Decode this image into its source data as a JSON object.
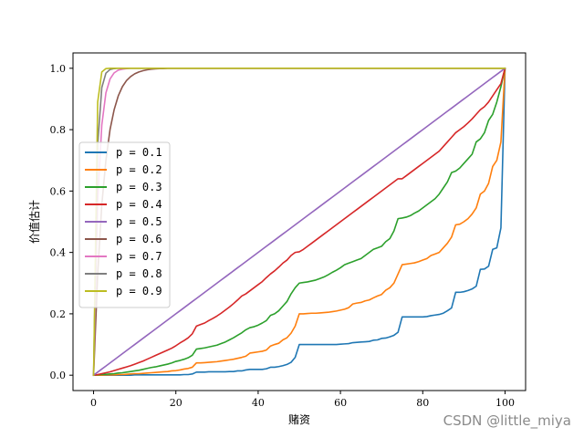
{
  "chart_data": {
    "type": "line",
    "xlabel": "赌资",
    "ylabel": "价值估计",
    "xlim": [
      -5,
      105
    ],
    "ylim": [
      -0.05,
      1.05
    ],
    "xticks": [
      0,
      20,
      40,
      60,
      80,
      100
    ],
    "xtick_labels": [
      "0",
      "20",
      "40",
      "60",
      "80",
      "100"
    ],
    "yticks": [
      0.0,
      0.2,
      0.4,
      0.6,
      0.8,
      1.0
    ],
    "ytick_labels": [
      "0.0",
      "0.2",
      "0.4",
      "0.6",
      "0.8",
      "1.0"
    ],
    "grid": false,
    "legend_position": "center-left",
    "x": [
      0,
      1,
      2,
      3,
      4,
      5,
      6,
      7,
      8,
      9,
      10,
      11,
      12,
      13,
      14,
      15,
      16,
      17,
      18,
      19,
      20,
      21,
      22,
      23,
      24,
      25,
      26,
      27,
      28,
      29,
      30,
      31,
      32,
      33,
      34,
      35,
      36,
      37,
      38,
      39,
      40,
      41,
      42,
      43,
      44,
      45,
      46,
      47,
      48,
      49,
      50,
      51,
      52,
      53,
      54,
      55,
      56,
      57,
      58,
      59,
      60,
      61,
      62,
      63,
      64,
      65,
      66,
      67,
      68,
      69,
      70,
      71,
      72,
      73,
      74,
      75,
      76,
      77,
      78,
      79,
      80,
      81,
      82,
      83,
      84,
      85,
      86,
      87,
      88,
      89,
      90,
      91,
      92,
      93,
      94,
      95,
      96,
      97,
      98,
      99,
      100
    ],
    "series": [
      {
        "name": "p = 0.1",
        "color": "#1f77b4",
        "values": [
          0,
          0.0,
          0.0,
          0.0,
          0.0,
          0.0,
          0.0,
          0.0,
          0.0,
          0.0,
          0.001,
          0.001,
          0.001,
          0.001,
          0.001,
          0.001,
          0.001,
          0.001,
          0.001,
          0.001,
          0.001,
          0.001,
          0.002,
          0.002,
          0.004,
          0.01,
          0.01,
          0.01,
          0.011,
          0.011,
          0.011,
          0.011,
          0.011,
          0.012,
          0.012,
          0.014,
          0.014,
          0.017,
          0.019,
          0.019,
          0.019,
          0.019,
          0.021,
          0.026,
          0.026,
          0.028,
          0.031,
          0.035,
          0.042,
          0.058,
          0.1,
          0.1,
          0.1,
          0.1,
          0.1,
          0.1,
          0.1,
          0.1,
          0.1,
          0.1,
          0.101,
          0.102,
          0.103,
          0.106,
          0.107,
          0.108,
          0.109,
          0.11,
          0.114,
          0.115,
          0.12,
          0.121,
          0.125,
          0.13,
          0.14,
          0.19,
          0.19,
          0.19,
          0.19,
          0.19,
          0.19,
          0.191,
          0.194,
          0.196,
          0.198,
          0.202,
          0.21,
          0.219,
          0.27,
          0.27,
          0.272,
          0.276,
          0.281,
          0.29,
          0.345,
          0.346,
          0.355,
          0.41,
          0.415,
          0.48,
          1.0
        ]
      },
      {
        "name": "p = 0.2",
        "color": "#ff7f0e",
        "values": [
          0,
          0.0,
          0.0,
          0.001,
          0.001,
          0.001,
          0.002,
          0.002,
          0.003,
          0.004,
          0.005,
          0.005,
          0.006,
          0.007,
          0.008,
          0.009,
          0.01,
          0.011,
          0.012,
          0.014,
          0.015,
          0.017,
          0.02,
          0.022,
          0.026,
          0.04,
          0.04,
          0.041,
          0.042,
          0.043,
          0.044,
          0.046,
          0.048,
          0.05,
          0.052,
          0.055,
          0.058,
          0.062,
          0.072,
          0.074,
          0.076,
          0.078,
          0.082,
          0.095,
          0.1,
          0.104,
          0.115,
          0.122,
          0.137,
          0.16,
          0.2,
          0.2,
          0.201,
          0.202,
          0.202,
          0.203,
          0.204,
          0.205,
          0.207,
          0.209,
          0.212,
          0.215,
          0.22,
          0.232,
          0.235,
          0.237,
          0.242,
          0.245,
          0.252,
          0.258,
          0.263,
          0.277,
          0.285,
          0.3,
          0.33,
          0.36,
          0.362,
          0.364,
          0.366,
          0.37,
          0.375,
          0.38,
          0.39,
          0.395,
          0.4,
          0.415,
          0.43,
          0.45,
          0.49,
          0.492,
          0.5,
          0.51,
          0.525,
          0.545,
          0.59,
          0.6,
          0.625,
          0.68,
          0.7,
          0.76,
          1.0
        ]
      },
      {
        "name": "p = 0.3",
        "color": "#2ca02c",
        "values": [
          0,
          0.001,
          0.002,
          0.003,
          0.004,
          0.005,
          0.007,
          0.008,
          0.01,
          0.012,
          0.014,
          0.016,
          0.019,
          0.022,
          0.025,
          0.027,
          0.03,
          0.033,
          0.036,
          0.04,
          0.045,
          0.048,
          0.052,
          0.057,
          0.065,
          0.085,
          0.087,
          0.089,
          0.092,
          0.095,
          0.098,
          0.103,
          0.108,
          0.115,
          0.122,
          0.13,
          0.138,
          0.148,
          0.155,
          0.158,
          0.163,
          0.17,
          0.178,
          0.195,
          0.2,
          0.21,
          0.225,
          0.24,
          0.265,
          0.285,
          0.3,
          0.302,
          0.304,
          0.307,
          0.31,
          0.315,
          0.32,
          0.327,
          0.335,
          0.342,
          0.35,
          0.36,
          0.365,
          0.37,
          0.375,
          0.38,
          0.39,
          0.4,
          0.41,
          0.415,
          0.42,
          0.435,
          0.445,
          0.47,
          0.51,
          0.512,
          0.515,
          0.52,
          0.528,
          0.535,
          0.545,
          0.555,
          0.565,
          0.575,
          0.59,
          0.61,
          0.63,
          0.66,
          0.665,
          0.675,
          0.69,
          0.705,
          0.72,
          0.76,
          0.77,
          0.79,
          0.83,
          0.85,
          0.89,
          0.94,
          1.0
        ]
      },
      {
        "name": "p = 0.4",
        "color": "#d62728",
        "values": [
          0,
          0.002,
          0.005,
          0.008,
          0.011,
          0.015,
          0.019,
          0.023,
          0.027,
          0.031,
          0.036,
          0.041,
          0.046,
          0.052,
          0.058,
          0.064,
          0.07,
          0.076,
          0.082,
          0.088,
          0.096,
          0.105,
          0.113,
          0.122,
          0.135,
          0.16,
          0.165,
          0.17,
          0.178,
          0.185,
          0.193,
          0.202,
          0.212,
          0.222,
          0.233,
          0.245,
          0.258,
          0.265,
          0.275,
          0.285,
          0.295,
          0.305,
          0.318,
          0.33,
          0.34,
          0.352,
          0.365,
          0.375,
          0.39,
          0.4,
          0.402,
          0.41,
          0.42,
          0.43,
          0.44,
          0.45,
          0.46,
          0.47,
          0.48,
          0.49,
          0.5,
          0.51,
          0.52,
          0.53,
          0.54,
          0.55,
          0.56,
          0.57,
          0.58,
          0.59,
          0.6,
          0.61,
          0.62,
          0.63,
          0.64,
          0.64,
          0.65,
          0.66,
          0.67,
          0.68,
          0.69,
          0.7,
          0.71,
          0.72,
          0.73,
          0.745,
          0.76,
          0.775,
          0.79,
          0.8,
          0.81,
          0.822,
          0.835,
          0.85,
          0.865,
          0.875,
          0.89,
          0.91,
          0.93,
          0.95,
          1.0
        ]
      },
      {
        "name": "p = 0.5",
        "color": "#9467bd",
        "values": [
          0.0,
          0.01,
          0.02,
          0.03,
          0.04,
          0.05,
          0.06,
          0.07,
          0.08,
          0.09,
          0.1,
          0.11,
          0.12,
          0.13,
          0.14,
          0.15,
          0.16,
          0.17,
          0.18,
          0.19,
          0.2,
          0.21,
          0.22,
          0.23,
          0.24,
          0.25,
          0.26,
          0.27,
          0.28,
          0.29,
          0.3,
          0.31,
          0.32,
          0.33,
          0.34,
          0.35,
          0.36,
          0.37,
          0.38,
          0.39,
          0.4,
          0.41,
          0.42,
          0.43,
          0.44,
          0.45,
          0.46,
          0.47,
          0.48,
          0.49,
          0.5,
          0.51,
          0.52,
          0.53,
          0.54,
          0.55,
          0.56,
          0.57,
          0.58,
          0.59,
          0.6,
          0.61,
          0.62,
          0.63,
          0.64,
          0.65,
          0.66,
          0.67,
          0.68,
          0.69,
          0.7,
          0.71,
          0.72,
          0.73,
          0.74,
          0.75,
          0.76,
          0.77,
          0.78,
          0.79,
          0.8,
          0.81,
          0.82,
          0.83,
          0.84,
          0.85,
          0.86,
          0.87,
          0.88,
          0.89,
          0.9,
          0.91,
          0.92,
          0.93,
          0.94,
          0.95,
          0.96,
          0.97,
          0.98,
          0.99,
          1.0
        ]
      },
      {
        "name": "p = 0.6",
        "color": "#8c564b",
        "values": [
          0,
          0.33,
          0.555,
          0.7,
          0.8,
          0.865,
          0.91,
          0.94,
          0.96,
          0.973,
          0.982,
          0.988,
          0.992,
          0.995,
          0.997,
          0.998,
          0.999,
          0.999,
          1.0,
          1.0,
          1.0,
          1.0,
          1.0,
          1.0,
          1.0,
          1.0,
          1.0,
          1.0,
          1.0,
          1.0,
          1.0,
          1.0,
          1.0,
          1.0,
          1.0,
          1.0,
          1.0,
          1.0,
          1.0,
          1.0,
          1.0,
          1.0,
          1.0,
          1.0,
          1.0,
          1.0,
          1.0,
          1.0,
          1.0,
          1.0,
          1.0,
          1.0,
          1.0,
          1.0,
          1.0,
          1.0,
          1.0,
          1.0,
          1.0,
          1.0,
          1.0,
          1.0,
          1.0,
          1.0,
          1.0,
          1.0,
          1.0,
          1.0,
          1.0,
          1.0,
          1.0,
          1.0,
          1.0,
          1.0,
          1.0,
          1.0,
          1.0,
          1.0,
          1.0,
          1.0,
          1.0,
          1.0,
          1.0,
          1.0,
          1.0,
          1.0,
          1.0,
          1.0,
          1.0,
          1.0,
          1.0,
          1.0,
          1.0,
          1.0,
          1.0,
          1.0,
          1.0,
          1.0,
          1.0,
          1.0,
          1.0
        ]
      },
      {
        "name": "p = 0.7",
        "color": "#e377c2",
        "values": [
          0,
          0.57,
          0.815,
          0.92,
          0.965,
          0.985,
          0.994,
          0.997,
          0.999,
          1.0,
          1.0,
          1.0,
          1.0,
          1.0,
          1.0,
          1.0,
          1.0,
          1.0,
          1.0,
          1.0,
          1.0,
          1.0,
          1.0,
          1.0,
          1.0,
          1.0,
          1.0,
          1.0,
          1.0,
          1.0,
          1.0,
          1.0,
          1.0,
          1.0,
          1.0,
          1.0,
          1.0,
          1.0,
          1.0,
          1.0,
          1.0,
          1.0,
          1.0,
          1.0,
          1.0,
          1.0,
          1.0,
          1.0,
          1.0,
          1.0,
          1.0,
          1.0,
          1.0,
          1.0,
          1.0,
          1.0,
          1.0,
          1.0,
          1.0,
          1.0,
          1.0,
          1.0,
          1.0,
          1.0,
          1.0,
          1.0,
          1.0,
          1.0,
          1.0,
          1.0,
          1.0,
          1.0,
          1.0,
          1.0,
          1.0,
          1.0,
          1.0,
          1.0,
          1.0,
          1.0,
          1.0,
          1.0,
          1.0,
          1.0,
          1.0,
          1.0,
          1.0,
          1.0,
          1.0,
          1.0,
          1.0,
          1.0,
          1.0,
          1.0,
          1.0,
          1.0,
          1.0,
          1.0,
          1.0,
          1.0,
          1.0
        ]
      },
      {
        "name": "p = 0.8",
        "color": "#7f7f7f",
        "values": [
          0,
          0.75,
          0.937,
          0.984,
          0.996,
          0.999,
          1.0,
          1.0,
          1.0,
          1.0,
          1.0,
          1.0,
          1.0,
          1.0,
          1.0,
          1.0,
          1.0,
          1.0,
          1.0,
          1.0,
          1.0,
          1.0,
          1.0,
          1.0,
          1.0,
          1.0,
          1.0,
          1.0,
          1.0,
          1.0,
          1.0,
          1.0,
          1.0,
          1.0,
          1.0,
          1.0,
          1.0,
          1.0,
          1.0,
          1.0,
          1.0,
          1.0,
          1.0,
          1.0,
          1.0,
          1.0,
          1.0,
          1.0,
          1.0,
          1.0,
          1.0,
          1.0,
          1.0,
          1.0,
          1.0,
          1.0,
          1.0,
          1.0,
          1.0,
          1.0,
          1.0,
          1.0,
          1.0,
          1.0,
          1.0,
          1.0,
          1.0,
          1.0,
          1.0,
          1.0,
          1.0,
          1.0,
          1.0,
          1.0,
          1.0,
          1.0,
          1.0,
          1.0,
          1.0,
          1.0,
          1.0,
          1.0,
          1.0,
          1.0,
          1.0,
          1.0,
          1.0,
          1.0,
          1.0,
          1.0,
          1.0,
          1.0,
          1.0,
          1.0,
          1.0,
          1.0,
          1.0,
          1.0,
          1.0,
          1.0,
          1.0
        ]
      },
      {
        "name": "p = 0.9",
        "color": "#bcbd22",
        "values": [
          0,
          0.89,
          0.988,
          0.999,
          1.0,
          1.0,
          1.0,
          1.0,
          1.0,
          1.0,
          1.0,
          1.0,
          1.0,
          1.0,
          1.0,
          1.0,
          1.0,
          1.0,
          1.0,
          1.0,
          1.0,
          1.0,
          1.0,
          1.0,
          1.0,
          1.0,
          1.0,
          1.0,
          1.0,
          1.0,
          1.0,
          1.0,
          1.0,
          1.0,
          1.0,
          1.0,
          1.0,
          1.0,
          1.0,
          1.0,
          1.0,
          1.0,
          1.0,
          1.0,
          1.0,
          1.0,
          1.0,
          1.0,
          1.0,
          1.0,
          1.0,
          1.0,
          1.0,
          1.0,
          1.0,
          1.0,
          1.0,
          1.0,
          1.0,
          1.0,
          1.0,
          1.0,
          1.0,
          1.0,
          1.0,
          1.0,
          1.0,
          1.0,
          1.0,
          1.0,
          1.0,
          1.0,
          1.0,
          1.0,
          1.0,
          1.0,
          1.0,
          1.0,
          1.0,
          1.0,
          1.0,
          1.0,
          1.0,
          1.0,
          1.0,
          1.0,
          1.0,
          1.0,
          1.0,
          1.0,
          1.0,
          1.0,
          1.0,
          1.0,
          1.0,
          1.0,
          1.0,
          1.0,
          1.0,
          1.0,
          1.0
        ]
      }
    ]
  },
  "watermark": "CSDN @little_miya"
}
